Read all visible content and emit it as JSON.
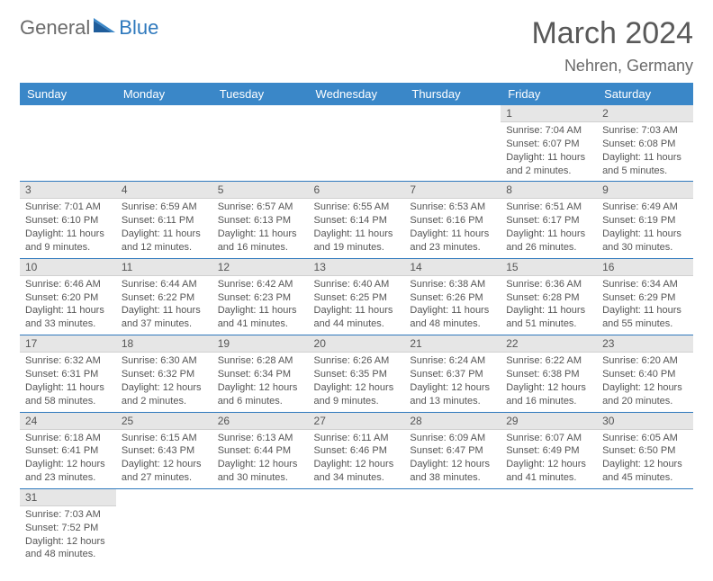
{
  "brand": {
    "part1": "General",
    "part2": "Blue"
  },
  "header": {
    "month_title": "March 2024",
    "location": "Nehren, Germany"
  },
  "colors": {
    "header_bg": "#3a87c8",
    "header_text": "#ffffff",
    "daynum_bg": "#e6e6e6",
    "row_border": "#2f79bd",
    "body_text": "#555555",
    "brand_grey": "#6b6b6b",
    "brand_blue": "#2f79bd"
  },
  "weekdays": [
    "Sunday",
    "Monday",
    "Tuesday",
    "Wednesday",
    "Thursday",
    "Friday",
    "Saturday"
  ],
  "weeks": [
    [
      null,
      null,
      null,
      null,
      null,
      {
        "n": "1",
        "sunrise": "Sunrise: 7:04 AM",
        "sunset": "Sunset: 6:07 PM",
        "daylight": "Daylight: 11 hours and 2 minutes."
      },
      {
        "n": "2",
        "sunrise": "Sunrise: 7:03 AM",
        "sunset": "Sunset: 6:08 PM",
        "daylight": "Daylight: 11 hours and 5 minutes."
      }
    ],
    [
      {
        "n": "3",
        "sunrise": "Sunrise: 7:01 AM",
        "sunset": "Sunset: 6:10 PM",
        "daylight": "Daylight: 11 hours and 9 minutes."
      },
      {
        "n": "4",
        "sunrise": "Sunrise: 6:59 AM",
        "sunset": "Sunset: 6:11 PM",
        "daylight": "Daylight: 11 hours and 12 minutes."
      },
      {
        "n": "5",
        "sunrise": "Sunrise: 6:57 AM",
        "sunset": "Sunset: 6:13 PM",
        "daylight": "Daylight: 11 hours and 16 minutes."
      },
      {
        "n": "6",
        "sunrise": "Sunrise: 6:55 AM",
        "sunset": "Sunset: 6:14 PM",
        "daylight": "Daylight: 11 hours and 19 minutes."
      },
      {
        "n": "7",
        "sunrise": "Sunrise: 6:53 AM",
        "sunset": "Sunset: 6:16 PM",
        "daylight": "Daylight: 11 hours and 23 minutes."
      },
      {
        "n": "8",
        "sunrise": "Sunrise: 6:51 AM",
        "sunset": "Sunset: 6:17 PM",
        "daylight": "Daylight: 11 hours and 26 minutes."
      },
      {
        "n": "9",
        "sunrise": "Sunrise: 6:49 AM",
        "sunset": "Sunset: 6:19 PM",
        "daylight": "Daylight: 11 hours and 30 minutes."
      }
    ],
    [
      {
        "n": "10",
        "sunrise": "Sunrise: 6:46 AM",
        "sunset": "Sunset: 6:20 PM",
        "daylight": "Daylight: 11 hours and 33 minutes."
      },
      {
        "n": "11",
        "sunrise": "Sunrise: 6:44 AM",
        "sunset": "Sunset: 6:22 PM",
        "daylight": "Daylight: 11 hours and 37 minutes."
      },
      {
        "n": "12",
        "sunrise": "Sunrise: 6:42 AM",
        "sunset": "Sunset: 6:23 PM",
        "daylight": "Daylight: 11 hours and 41 minutes."
      },
      {
        "n": "13",
        "sunrise": "Sunrise: 6:40 AM",
        "sunset": "Sunset: 6:25 PM",
        "daylight": "Daylight: 11 hours and 44 minutes."
      },
      {
        "n": "14",
        "sunrise": "Sunrise: 6:38 AM",
        "sunset": "Sunset: 6:26 PM",
        "daylight": "Daylight: 11 hours and 48 minutes."
      },
      {
        "n": "15",
        "sunrise": "Sunrise: 6:36 AM",
        "sunset": "Sunset: 6:28 PM",
        "daylight": "Daylight: 11 hours and 51 minutes."
      },
      {
        "n": "16",
        "sunrise": "Sunrise: 6:34 AM",
        "sunset": "Sunset: 6:29 PM",
        "daylight": "Daylight: 11 hours and 55 minutes."
      }
    ],
    [
      {
        "n": "17",
        "sunrise": "Sunrise: 6:32 AM",
        "sunset": "Sunset: 6:31 PM",
        "daylight": "Daylight: 11 hours and 58 minutes."
      },
      {
        "n": "18",
        "sunrise": "Sunrise: 6:30 AM",
        "sunset": "Sunset: 6:32 PM",
        "daylight": "Daylight: 12 hours and 2 minutes."
      },
      {
        "n": "19",
        "sunrise": "Sunrise: 6:28 AM",
        "sunset": "Sunset: 6:34 PM",
        "daylight": "Daylight: 12 hours and 6 minutes."
      },
      {
        "n": "20",
        "sunrise": "Sunrise: 6:26 AM",
        "sunset": "Sunset: 6:35 PM",
        "daylight": "Daylight: 12 hours and 9 minutes."
      },
      {
        "n": "21",
        "sunrise": "Sunrise: 6:24 AM",
        "sunset": "Sunset: 6:37 PM",
        "daylight": "Daylight: 12 hours and 13 minutes."
      },
      {
        "n": "22",
        "sunrise": "Sunrise: 6:22 AM",
        "sunset": "Sunset: 6:38 PM",
        "daylight": "Daylight: 12 hours and 16 minutes."
      },
      {
        "n": "23",
        "sunrise": "Sunrise: 6:20 AM",
        "sunset": "Sunset: 6:40 PM",
        "daylight": "Daylight: 12 hours and 20 minutes."
      }
    ],
    [
      {
        "n": "24",
        "sunrise": "Sunrise: 6:18 AM",
        "sunset": "Sunset: 6:41 PM",
        "daylight": "Daylight: 12 hours and 23 minutes."
      },
      {
        "n": "25",
        "sunrise": "Sunrise: 6:15 AM",
        "sunset": "Sunset: 6:43 PM",
        "daylight": "Daylight: 12 hours and 27 minutes."
      },
      {
        "n": "26",
        "sunrise": "Sunrise: 6:13 AM",
        "sunset": "Sunset: 6:44 PM",
        "daylight": "Daylight: 12 hours and 30 minutes."
      },
      {
        "n": "27",
        "sunrise": "Sunrise: 6:11 AM",
        "sunset": "Sunset: 6:46 PM",
        "daylight": "Daylight: 12 hours and 34 minutes."
      },
      {
        "n": "28",
        "sunrise": "Sunrise: 6:09 AM",
        "sunset": "Sunset: 6:47 PM",
        "daylight": "Daylight: 12 hours and 38 minutes."
      },
      {
        "n": "29",
        "sunrise": "Sunrise: 6:07 AM",
        "sunset": "Sunset: 6:49 PM",
        "daylight": "Daylight: 12 hours and 41 minutes."
      },
      {
        "n": "30",
        "sunrise": "Sunrise: 6:05 AM",
        "sunset": "Sunset: 6:50 PM",
        "daylight": "Daylight: 12 hours and 45 minutes."
      }
    ],
    [
      {
        "n": "31",
        "sunrise": "Sunrise: 7:03 AM",
        "sunset": "Sunset: 7:52 PM",
        "daylight": "Daylight: 12 hours and 48 minutes."
      },
      null,
      null,
      null,
      null,
      null,
      null
    ]
  ]
}
